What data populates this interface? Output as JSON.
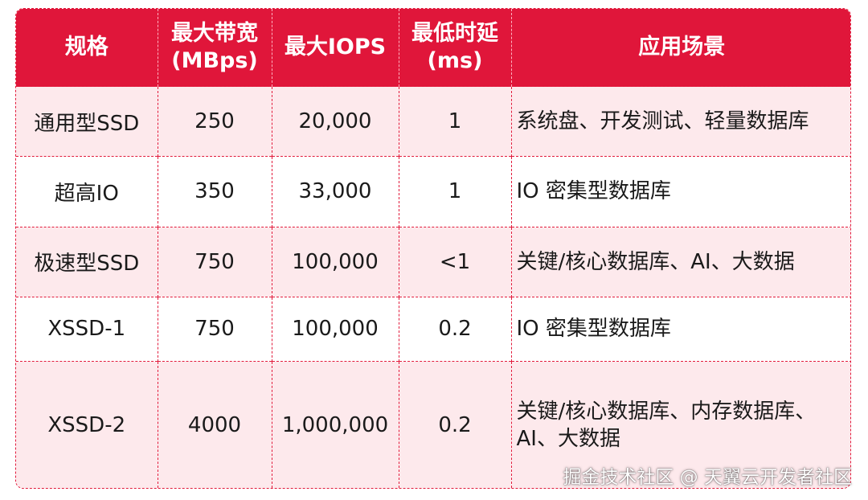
{
  "headers": [
    [
      "规格"
    ],
    [
      "最大带宽",
      "(MBps)"
    ],
    [
      "最大IOPS"
    ],
    [
      "最低时延",
      "(ms)"
    ],
    [
      "应用场景"
    ]
  ],
  "rows": [
    [
      "通用型SSD",
      "250",
      "20,000",
      "1",
      "系统盘、开发测试、轻量数据库"
    ],
    [
      "超高IO",
      "350",
      "33,000",
      "1",
      "IO 密集型数据库"
    ],
    [
      "极速型SSD",
      "750",
      "100,000",
      "<1",
      "关键/核心数据库、AI、大数据"
    ],
    [
      "XSSD-1",
      "750",
      "100,000",
      "0.2",
      "IO 密集型数据库"
    ],
    [
      "XSSD-2",
      "4000",
      "1,000,000",
      "0.2",
      "关键/核心数据库、内存数据库、AI、大数据"
    ]
  ],
  "watermark": "掘金技术社区 @ 天翼云开发者社区",
  "colors": {
    "header_bg": "#e0163a",
    "row_alt_bg": "#fde9ec",
    "border": "#e21b3c"
  }
}
